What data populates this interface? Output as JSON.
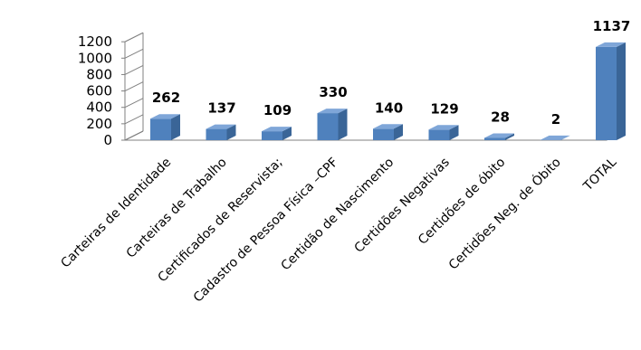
{
  "chart_data": {
    "type": "bar",
    "categories": [
      "Carteiras de Identidade",
      "Carteiras de Trabalho",
      "Certificados de Reservista;",
      "Cadastro de Pessoa Física –CPF",
      "Certidão de Nascimento",
      "Certidões Negativas",
      "Certidões de óbito",
      "Certidões Neg. de Óbito",
      "TOTAL"
    ],
    "values": [
      262,
      137,
      109,
      330,
      140,
      129,
      28,
      2,
      1137
    ],
    "data_labels": [
      "262",
      "137",
      "109",
      "330",
      "140",
      "129",
      "28",
      "2",
      "1137"
    ],
    "yticks": [
      "0",
      "200",
      "400",
      "600",
      "800",
      "1000",
      "1200"
    ],
    "ylim": [
      0,
      1200
    ],
    "grid": false,
    "legend": "none",
    "style": "3d-column",
    "bar_color": "#4F81BD",
    "bar_side_color": "#3A6597",
    "bar_top_color": "#7FA6D8"
  }
}
